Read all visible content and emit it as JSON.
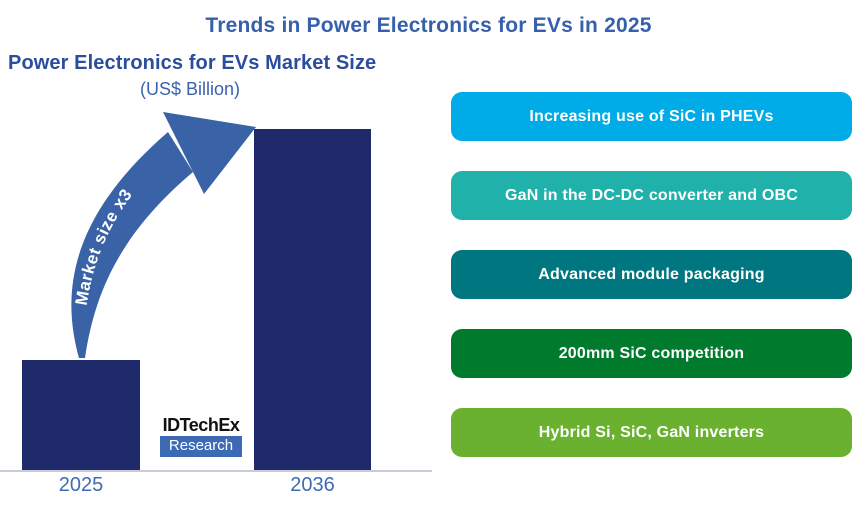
{
  "title": "Trends in Power Electronics for EVs in 2025",
  "chart": {
    "subtitle": "Power Electronics for EVs Market Size",
    "unit_label": "(US$ Billion)",
    "arrow_label": "Market size x3",
    "logo": {
      "name": "IDTechEx",
      "division": "Research"
    }
  },
  "chart_data": {
    "type": "bar",
    "title": "Power Electronics for EVs Market Size",
    "ylabel": "US$ Billion",
    "categories": [
      "2025",
      "2036"
    ],
    "relative_values": [
      1,
      3.1
    ],
    "annotation": "Market size x3",
    "value_axis_shown": false,
    "bar_color": "#1f2a6b",
    "tick_label_color": "#3d6cb4"
  },
  "trends": [
    {
      "label": "Increasing use of SiC in PHEVs",
      "color": "#00ace8"
    },
    {
      "label": "GaN in the DC-DC converter and OBC",
      "color": "#20b1aa"
    },
    {
      "label": "Advanced module packaging",
      "color": "#007780"
    },
    {
      "label": "200mm SiC competition",
      "color": "#007b2e"
    },
    {
      "label": "Hybrid Si, SiC, GaN inverters",
      "color": "#69b12e"
    }
  ],
  "colors": {
    "title": "#3760ac",
    "subtitle": "#2b4d9d",
    "unit_label": "#3a63ae",
    "arrow": "#3a62a7",
    "logo_blue": "#3d6ab5"
  }
}
